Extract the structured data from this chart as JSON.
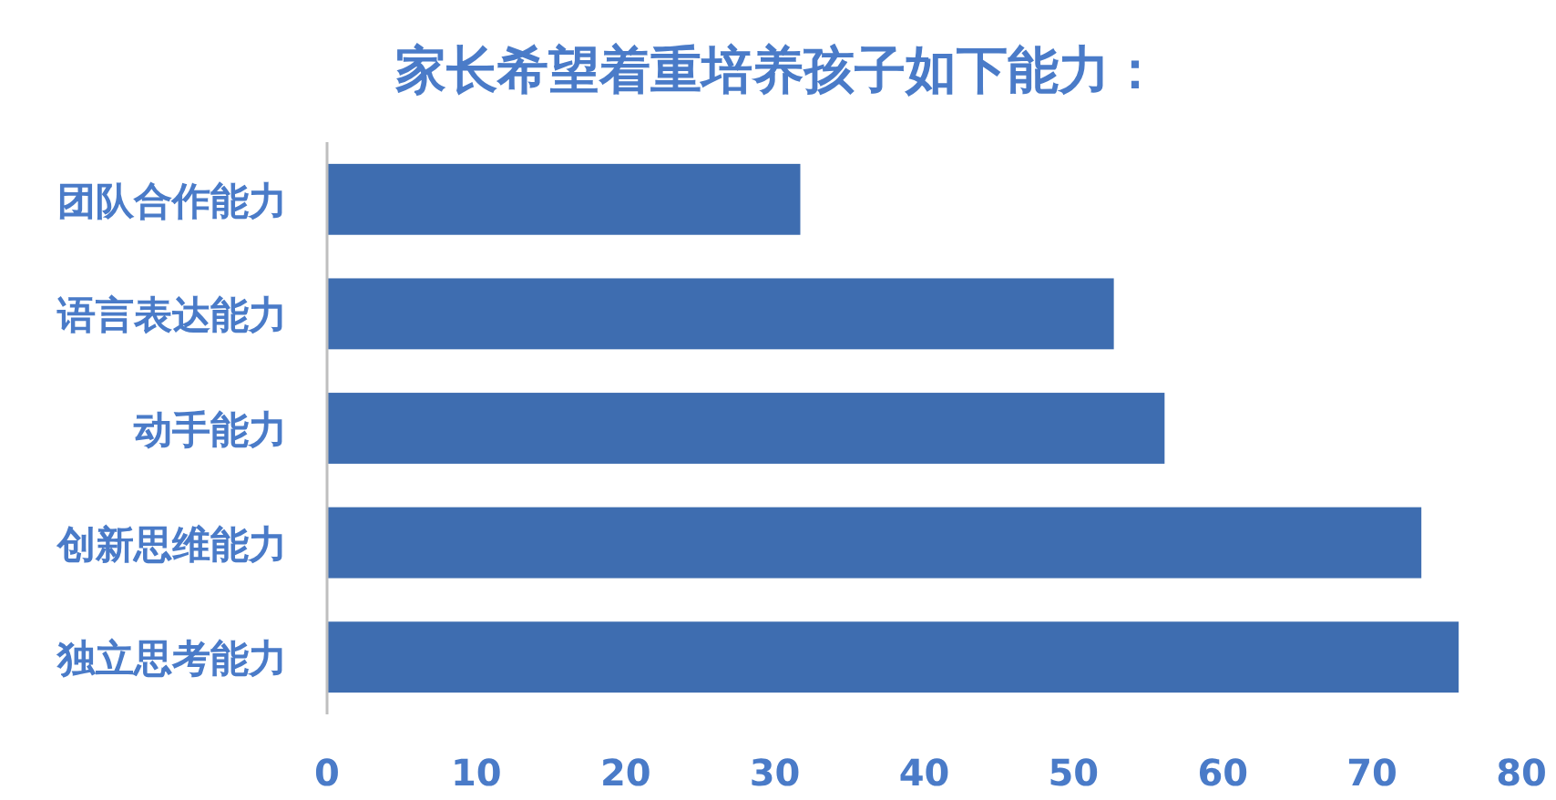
{
  "chart_data": {
    "type": "bar",
    "orientation": "horizontal",
    "title": "家长希望着重培养孩子如下能力：",
    "categories": [
      "团队合作能力",
      "语言表达能力",
      "动手能力",
      "创新思维能力",
      "独立思考能力"
    ],
    "values": [
      31.7,
      52.7,
      56.1,
      73.3,
      75.8
    ],
    "color": "#3e6db0",
    "xlim": [
      0,
      80
    ],
    "xticks": [
      0,
      10,
      20,
      30,
      40,
      50,
      60,
      70,
      80
    ],
    "grid": false
  }
}
